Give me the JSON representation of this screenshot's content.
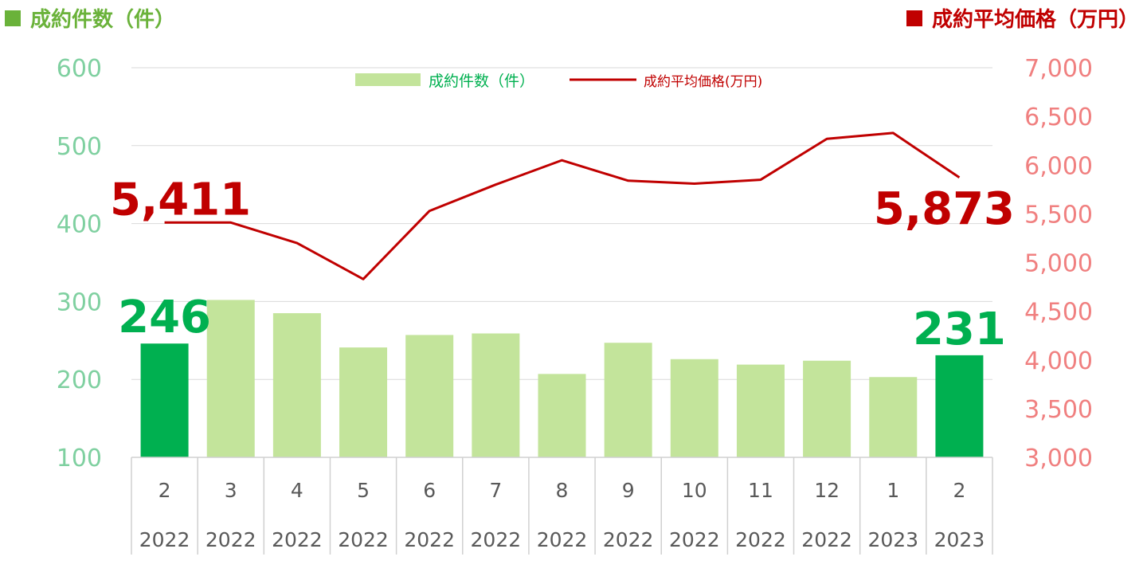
{
  "header": {
    "left_title": "成約件数（件）",
    "right_title": "成約平均価格（万円）"
  },
  "colors": {
    "bar_light": "#c3e49b",
    "bar_highlight": "#00b050",
    "line": "#c00000",
    "left_axis": "#7fd0a0",
    "right_axis": "#f08080",
    "header_left": "#6ab23a",
    "header_right": "#c00000"
  },
  "chart_data": {
    "type": "bar+line",
    "categories": [
      {
        "month": "2",
        "year": "2022"
      },
      {
        "month": "3",
        "year": "2022"
      },
      {
        "month": "4",
        "year": "2022"
      },
      {
        "month": "5",
        "year": "2022"
      },
      {
        "month": "6",
        "year": "2022"
      },
      {
        "month": "7",
        "year": "2022"
      },
      {
        "month": "8",
        "year": "2022"
      },
      {
        "month": "9",
        "year": "2022"
      },
      {
        "month": "10",
        "year": "2022"
      },
      {
        "month": "11",
        "year": "2022"
      },
      {
        "month": "12",
        "year": "2022"
      },
      {
        "month": "1",
        "year": "2023"
      },
      {
        "month": "2",
        "year": "2023"
      }
    ],
    "series": [
      {
        "name": "成約件数（件）",
        "type": "bar",
        "axis": "left",
        "values": [
          246,
          302,
          285,
          241,
          257,
          259,
          207,
          247,
          226,
          219,
          224,
          203,
          231
        ],
        "highlight_indices": [
          0,
          12
        ]
      },
      {
        "name": "成約平均価格(万円)",
        "type": "line",
        "axis": "right",
        "values": [
          5411,
          5411,
          5200,
          4830,
          5530,
          5800,
          6050,
          5840,
          5810,
          5850,
          6270,
          6330,
          5873
        ]
      }
    ],
    "left_axis": {
      "ylim": [
        100,
        600
      ],
      "ticks": [
        "100",
        "200",
        "300",
        "400",
        "500",
        "600"
      ]
    },
    "right_axis": {
      "ylim": [
        3000,
        7000
      ],
      "ticks": [
        "3,000",
        "3,500",
        "4,000",
        "4,500",
        "5,000",
        "5,500",
        "6,000",
        "6,500",
        "7,000"
      ]
    },
    "gridlines": true,
    "legend_position": "top-center",
    "annotations": {
      "first_count": "246",
      "last_count": "231",
      "first_price": "5,411",
      "last_price": "5,873"
    }
  }
}
